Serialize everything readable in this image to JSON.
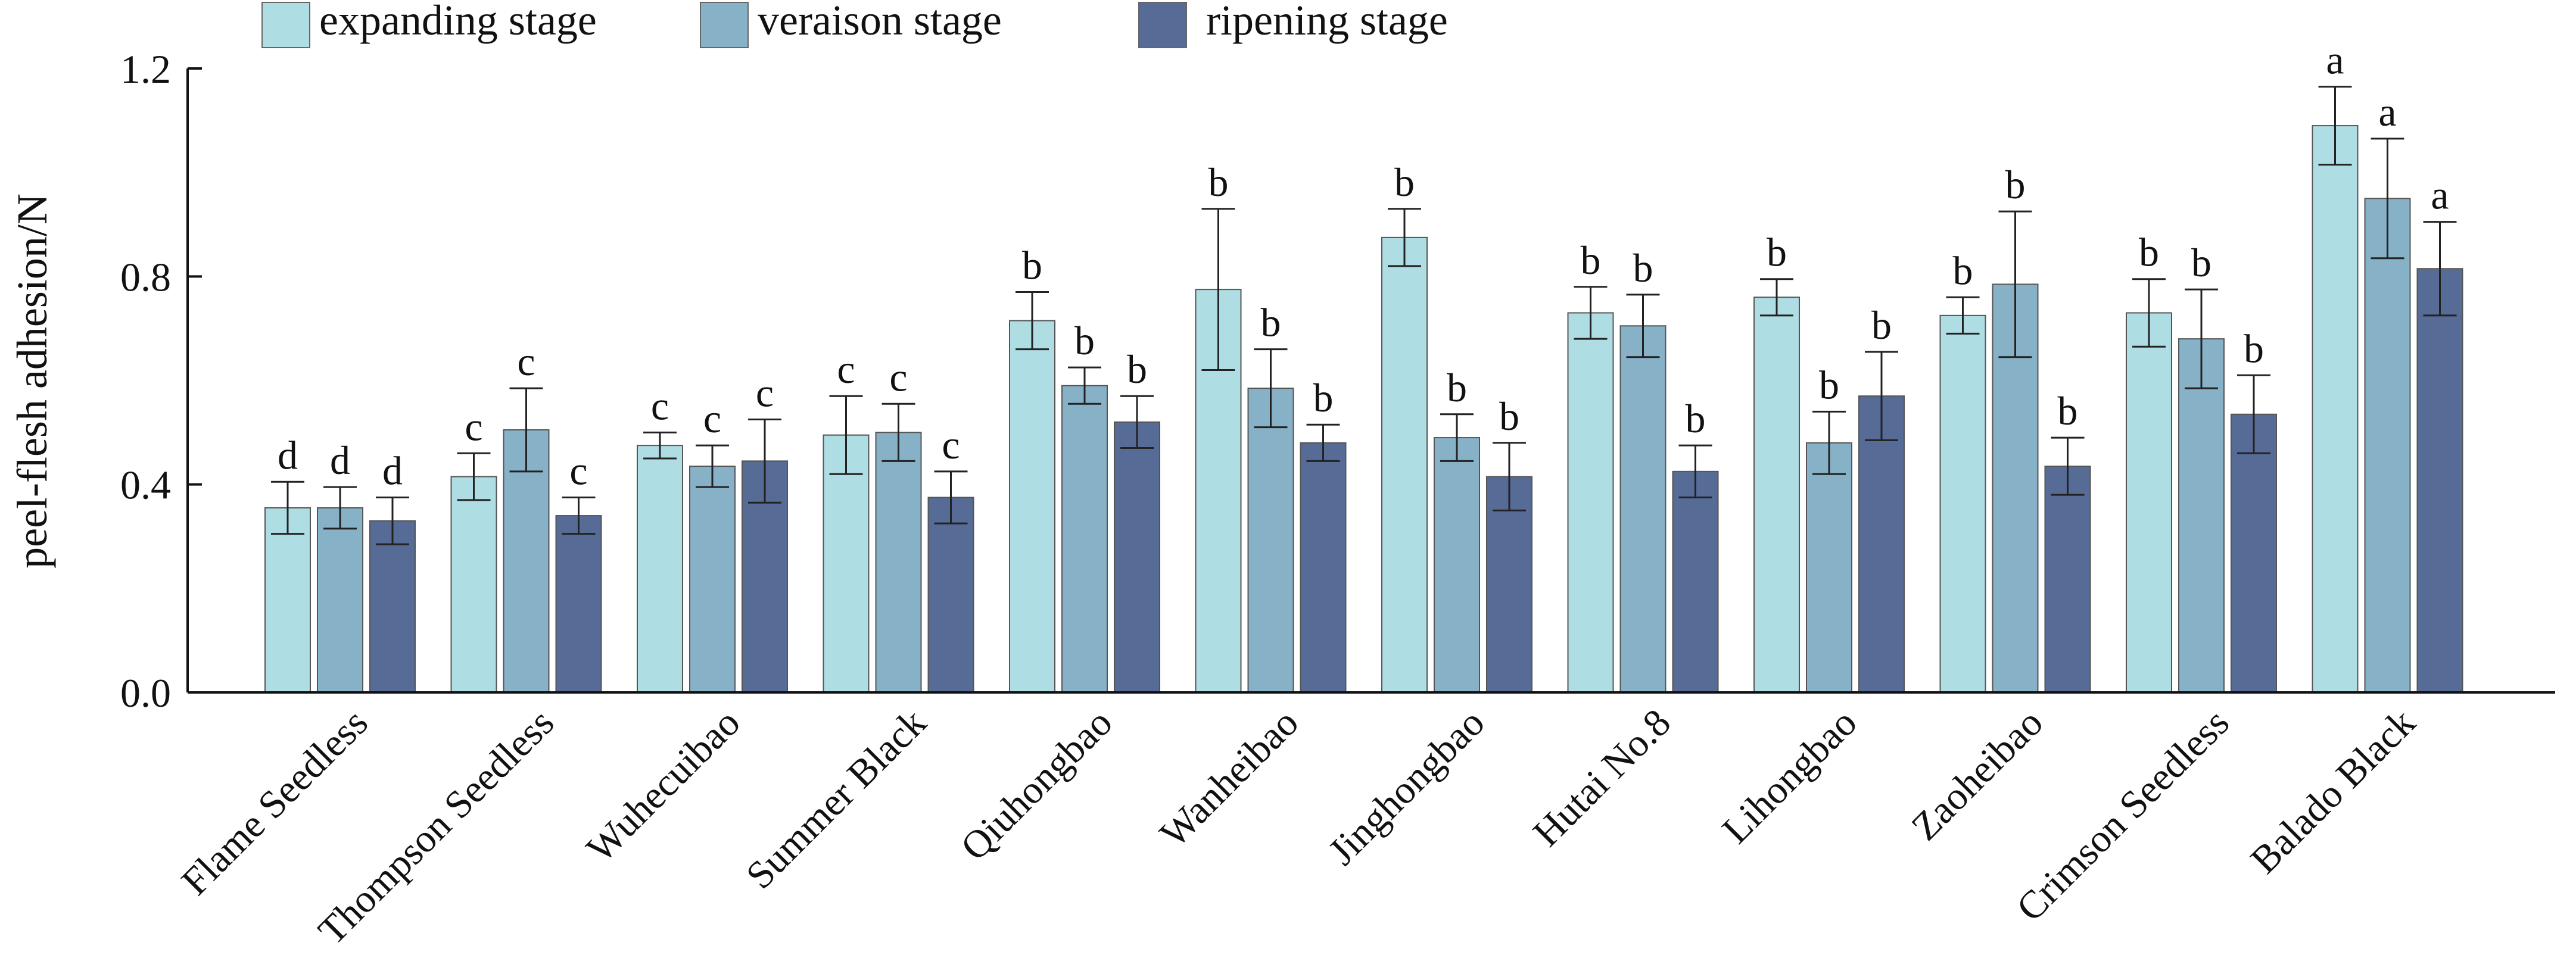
{
  "chart_data": {
    "type": "bar",
    "title": "",
    "xlabel": "",
    "ylabel": "peel-flesh adhesion/N",
    "ylim": [
      0,
      1.2
    ],
    "yticks": [
      "0.0",
      "0.4",
      "0.8",
      "1.2"
    ],
    "legend": "top-left, horizontal",
    "grid": false,
    "categories": [
      "Flame Seedless",
      "Thompson Seedless",
      "Wuhecuibao",
      "Summer Black",
      "Qiuhongbao",
      "Wanheibao",
      "Jinghongbao",
      "Hutai No.8",
      "Lihongbao",
      "Zaoheibao",
      "Crimson Seedless",
      "Balado Black"
    ],
    "series": [
      {
        "name": "expanding stage",
        "color": "#aedde3",
        "values": [
          0.355,
          0.415,
          0.475,
          0.495,
          0.715,
          0.775,
          0.875,
          0.73,
          0.76,
          0.725,
          0.73,
          1.09
        ],
        "errors": [
          0.05,
          0.045,
          0.025,
          0.075,
          0.055,
          0.155,
          0.055,
          0.05,
          0.035,
          0.035,
          0.065,
          0.075
        ],
        "letters": [
          "d",
          "c",
          "c",
          "c",
          "b",
          "b",
          "b",
          "b",
          "b",
          "b",
          "b",
          "a"
        ]
      },
      {
        "name": "veraison stage",
        "color": "#86b1c7",
        "values": [
          0.355,
          0.505,
          0.435,
          0.5,
          0.59,
          0.585,
          0.49,
          0.705,
          0.48,
          0.785,
          0.68,
          0.95
        ],
        "errors": [
          0.04,
          0.08,
          0.04,
          0.055,
          0.035,
          0.075,
          0.045,
          0.06,
          0.06,
          0.14,
          0.095,
          0.115
        ],
        "letters": [
          "d",
          "c",
          "c",
          "c",
          "b",
          "b",
          "b",
          "b",
          "b",
          "b",
          "b",
          "a"
        ]
      },
      {
        "name": "ripening stage",
        "color": "#566b96",
        "values": [
          0.33,
          0.34,
          0.445,
          0.375,
          0.52,
          0.48,
          0.415,
          0.425,
          0.57,
          0.435,
          0.535,
          0.815
        ],
        "errors": [
          0.045,
          0.035,
          0.08,
          0.05,
          0.05,
          0.035,
          0.065,
          0.05,
          0.085,
          0.055,
          0.075,
          0.09
        ],
        "letters": [
          "d",
          "c",
          "c",
          "c",
          "b",
          "b",
          "b",
          "b",
          "b",
          "b",
          "b",
          "a"
        ]
      }
    ]
  }
}
